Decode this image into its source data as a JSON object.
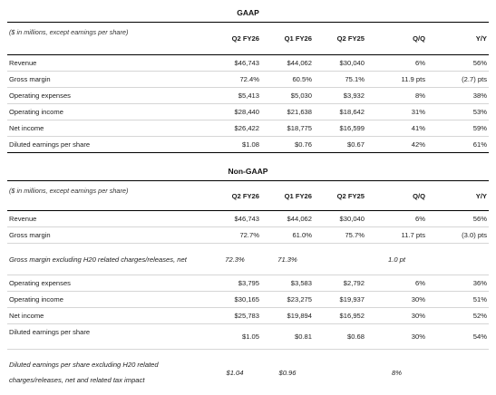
{
  "gaap": {
    "title": "GAAP",
    "note": "($ in millions, except earnings per share)",
    "columns": [
      "Q2 FY26",
      "Q1 FY26",
      "Q2 FY25",
      "Q/Q",
      "Y/Y"
    ],
    "rows": [
      {
        "label": "Revenue",
        "values": [
          "$46,743",
          "$44,062",
          "$30,040",
          "6%",
          "56%"
        ]
      },
      {
        "label": "Gross margin",
        "values": [
          "72.4%",
          "60.5%",
          "75.1%",
          "11.9 pts",
          "(2.7) pts"
        ]
      },
      {
        "label": "Operating expenses",
        "values": [
          "$5,413",
          "$5,030",
          "$3,932",
          "8%",
          "38%"
        ]
      },
      {
        "label": "Operating income",
        "values": [
          "$28,440",
          "$21,638",
          "$18,642",
          "31%",
          "53%"
        ]
      },
      {
        "label": "Net income",
        "values": [
          "$26,422",
          "$18,775",
          "$16,599",
          "41%",
          "59%"
        ]
      },
      {
        "label": "Diluted earnings per share",
        "values": [
          "$1.08",
          "$0.76",
          "$0.67",
          "42%",
          "61%"
        ]
      }
    ]
  },
  "nongaap": {
    "title": "Non-GAAP",
    "note": "($ in millions, except earnings per share)",
    "columns": [
      "Q2 FY26",
      "Q1 FY26",
      "Q2 FY25",
      "Q/Q",
      "Y/Y"
    ],
    "rows": [
      {
        "label": "Revenue",
        "values": [
          "$46,743",
          "$44,062",
          "$30,040",
          "6%",
          "56%"
        ]
      },
      {
        "label": "Gross margin",
        "values": [
          "72.7%",
          "61.0%",
          "75.7%",
          "11.7 pts",
          "(3.0) pts"
        ]
      },
      {
        "label": "Gross margin excluding H20 related charges/releases, net",
        "values": [
          "72.3%",
          "71.3%",
          "",
          "1.0 pt",
          ""
        ]
      },
      {
        "label": "Operating expenses",
        "values": [
          "$3,795",
          "$3,583",
          "$2,792",
          "6%",
          "36%"
        ]
      },
      {
        "label": "Operating income",
        "values": [
          "$30,165",
          "$23,275",
          "$19,937",
          "30%",
          "51%"
        ]
      },
      {
        "label": "Net income",
        "values": [
          "$25,783",
          "$19,894",
          "$16,952",
          "30%",
          "52%"
        ]
      },
      {
        "label": "Diluted earnings per share",
        "values": [
          "$1.05",
          "$0.81",
          "$0.68",
          "30%",
          "54%"
        ]
      },
      {
        "label": "Diluted earnings per share excluding H20 related charges/releases, net and related tax impact",
        "values": [
          "$1.04",
          "$0.96",
          "",
          "8%",
          ""
        ]
      }
    ]
  }
}
